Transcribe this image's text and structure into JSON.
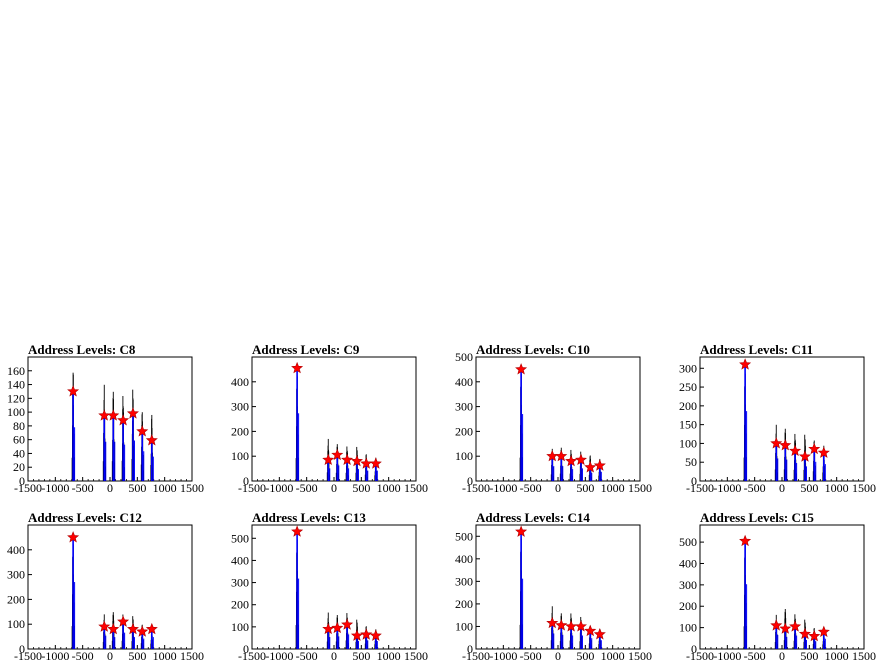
{
  "chart_data": [
    {
      "type": "histogram",
      "title": "Address Levels: C8",
      "xlim": [
        -1500,
        1500
      ],
      "ylim": [
        0,
        180
      ],
      "xticks": [
        -1500,
        -1000,
        -500,
        0,
        500,
        1000,
        1500
      ],
      "yticks": [
        0,
        20,
        40,
        60,
        80,
        100,
        120,
        140,
        160
      ],
      "peaks": [
        {
          "x": -675,
          "y": 130
        },
        {
          "x": -105,
          "y": 95
        },
        {
          "x": 60,
          "y": 95
        },
        {
          "x": 240,
          "y": 88
        },
        {
          "x": 420,
          "y": 98
        },
        {
          "x": 590,
          "y": 72
        },
        {
          "x": 765,
          "y": 59
        }
      ],
      "spikes": [
        {
          "x": -675,
          "y": 172
        },
        {
          "x": -105,
          "y": 140
        },
        {
          "x": 60,
          "y": 135
        },
        {
          "x": 240,
          "y": 133
        },
        {
          "x": 420,
          "y": 140
        },
        {
          "x": 590,
          "y": 102
        },
        {
          "x": 765,
          "y": 97
        }
      ]
    },
    {
      "type": "histogram",
      "title": "Address Levels: C9",
      "xlim": [
        -1500,
        1500
      ],
      "ylim": [
        0,
        500
      ],
      "xticks": [
        -1500,
        -1000,
        -500,
        0,
        500,
        1000,
        1500
      ],
      "yticks": [
        0,
        100,
        200,
        300,
        400
      ],
      "peaks": [
        {
          "x": -675,
          "y": 455
        },
        {
          "x": -105,
          "y": 85
        },
        {
          "x": 60,
          "y": 105
        },
        {
          "x": 240,
          "y": 85
        },
        {
          "x": 420,
          "y": 80
        },
        {
          "x": 590,
          "y": 70
        },
        {
          "x": 765,
          "y": 70
        }
      ],
      "spikes": [
        {
          "x": -675,
          "y": 470
        },
        {
          "x": -105,
          "y": 170
        },
        {
          "x": 60,
          "y": 155
        },
        {
          "x": 240,
          "y": 150
        },
        {
          "x": 420,
          "y": 145
        },
        {
          "x": 590,
          "y": 110
        },
        {
          "x": 765,
          "y": 95
        }
      ]
    },
    {
      "type": "histogram",
      "title": "Address Levels: C10",
      "xlim": [
        -1500,
        1500
      ],
      "ylim": [
        0,
        500
      ],
      "xticks": [
        -1500,
        -1000,
        -500,
        0,
        500,
        1000,
        1500
      ],
      "yticks": [
        0,
        100,
        200,
        300,
        400,
        500
      ],
      "peaks": [
        {
          "x": -675,
          "y": 450
        },
        {
          "x": -105,
          "y": 100
        },
        {
          "x": 60,
          "y": 100
        },
        {
          "x": 240,
          "y": 80
        },
        {
          "x": 420,
          "y": 85
        },
        {
          "x": 590,
          "y": 55
        },
        {
          "x": 765,
          "y": 62
        }
      ],
      "spikes": [
        {
          "x": -675,
          "y": 480
        },
        {
          "x": -105,
          "y": 130
        },
        {
          "x": 60,
          "y": 140
        },
        {
          "x": 240,
          "y": 135
        },
        {
          "x": 420,
          "y": 125
        },
        {
          "x": 590,
          "y": 105
        },
        {
          "x": 765,
          "y": 90
        }
      ]
    },
    {
      "type": "histogram",
      "title": "Address Levels: C11",
      "xlim": [
        -1500,
        1500
      ],
      "ylim": [
        0,
        330
      ],
      "xticks": [
        -1500,
        -1000,
        -500,
        0,
        500,
        1000,
        1500
      ],
      "yticks": [
        0,
        50,
        100,
        150,
        200,
        250,
        300
      ],
      "peaks": [
        {
          "x": -675,
          "y": 310
        },
        {
          "x": -105,
          "y": 100
        },
        {
          "x": 60,
          "y": 95
        },
        {
          "x": 240,
          "y": 80
        },
        {
          "x": 420,
          "y": 65
        },
        {
          "x": 590,
          "y": 85
        },
        {
          "x": 765,
          "y": 75
        }
      ],
      "spikes": [
        {
          "x": -675,
          "y": 318
        },
        {
          "x": -105,
          "y": 150
        },
        {
          "x": 60,
          "y": 145
        },
        {
          "x": 240,
          "y": 135
        },
        {
          "x": 420,
          "y": 130
        },
        {
          "x": 590,
          "y": 110
        },
        {
          "x": 765,
          "y": 95
        }
      ]
    },
    {
      "type": "histogram",
      "title": "Address Levels: C12",
      "xlim": [
        -1500,
        1500
      ],
      "ylim": [
        0,
        500
      ],
      "xticks": [
        -1500,
        -1000,
        -500,
        0,
        500,
        1000,
        1500
      ],
      "yticks": [
        0,
        100,
        200,
        300,
        400
      ],
      "peaks": [
        {
          "x": -675,
          "y": 450
        },
        {
          "x": -105,
          "y": 90
        },
        {
          "x": 60,
          "y": 80
        },
        {
          "x": 240,
          "y": 110
        },
        {
          "x": 420,
          "y": 80
        },
        {
          "x": 590,
          "y": 70
        },
        {
          "x": 765,
          "y": 80
        }
      ],
      "spikes": [
        {
          "x": -675,
          "y": 470
        },
        {
          "x": -105,
          "y": 140
        },
        {
          "x": 60,
          "y": 155
        },
        {
          "x": 240,
          "y": 150
        },
        {
          "x": 420,
          "y": 140
        },
        {
          "x": 590,
          "y": 100
        },
        {
          "x": 765,
          "y": 90
        }
      ]
    },
    {
      "type": "histogram",
      "title": "Address Levels: C13",
      "xlim": [
        -1500,
        1500
      ],
      "ylim": [
        0,
        560
      ],
      "xticks": [
        -1500,
        -1000,
        -500,
        0,
        500,
        1000,
        1500
      ],
      "yticks": [
        0,
        100,
        200,
        300,
        400,
        500
      ],
      "peaks": [
        {
          "x": -675,
          "y": 530
        },
        {
          "x": -105,
          "y": 90
        },
        {
          "x": 60,
          "y": 95
        },
        {
          "x": 240,
          "y": 110
        },
        {
          "x": 420,
          "y": 60
        },
        {
          "x": 590,
          "y": 65
        },
        {
          "x": 765,
          "y": 60
        }
      ],
      "spikes": [
        {
          "x": -675,
          "y": 550
        },
        {
          "x": -105,
          "y": 165
        },
        {
          "x": 60,
          "y": 160
        },
        {
          "x": 240,
          "y": 175
        },
        {
          "x": 420,
          "y": 140
        },
        {
          "x": 590,
          "y": 105
        },
        {
          "x": 765,
          "y": 90
        }
      ]
    },
    {
      "type": "histogram",
      "title": "Address Levels: C14",
      "xlim": [
        -1500,
        1500
      ],
      "ylim": [
        0,
        550
      ],
      "xticks": [
        -1500,
        -1000,
        -500,
        0,
        500,
        1000,
        1500
      ],
      "yticks": [
        0,
        100,
        200,
        300,
        400,
        500
      ],
      "peaks": [
        {
          "x": -675,
          "y": 520
        },
        {
          "x": -105,
          "y": 115
        },
        {
          "x": 60,
          "y": 105
        },
        {
          "x": 240,
          "y": 100
        },
        {
          "x": 420,
          "y": 100
        },
        {
          "x": 590,
          "y": 80
        },
        {
          "x": 765,
          "y": 65
        }
      ],
      "spikes": [
        {
          "x": -675,
          "y": 545
        },
        {
          "x": -105,
          "y": 190
        },
        {
          "x": 60,
          "y": 165
        },
        {
          "x": 240,
          "y": 170
        },
        {
          "x": 420,
          "y": 150
        },
        {
          "x": 590,
          "y": 105
        },
        {
          "x": 765,
          "y": 90
        }
      ]
    },
    {
      "type": "histogram",
      "title": "Address Levels: C15",
      "xlim": [
        -1500,
        1500
      ],
      "ylim": [
        0,
        580
      ],
      "xticks": [
        -1500,
        -1000,
        -500,
        0,
        500,
        1000,
        1500
      ],
      "yticks": [
        0,
        100,
        200,
        300,
        400,
        500
      ],
      "peaks": [
        {
          "x": -675,
          "y": 505
        },
        {
          "x": -105,
          "y": 110
        },
        {
          "x": 60,
          "y": 95
        },
        {
          "x": 240,
          "y": 105
        },
        {
          "x": 420,
          "y": 70
        },
        {
          "x": 590,
          "y": 60
        },
        {
          "x": 765,
          "y": 80
        }
      ],
      "spikes": [
        {
          "x": -675,
          "y": 540
        },
        {
          "x": -105,
          "y": 160
        },
        {
          "x": 60,
          "y": 195
        },
        {
          "x": 240,
          "y": 175
        },
        {
          "x": 420,
          "y": 145
        },
        {
          "x": 590,
          "y": 100
        },
        {
          "x": 765,
          "y": 90
        }
      ]
    }
  ],
  "colors": {
    "histogram_outline": "#000000",
    "histogram_fit": "#0000ff",
    "peak_marker": "#ff0000",
    "axis": "#000000",
    "background": "#ffffff"
  }
}
